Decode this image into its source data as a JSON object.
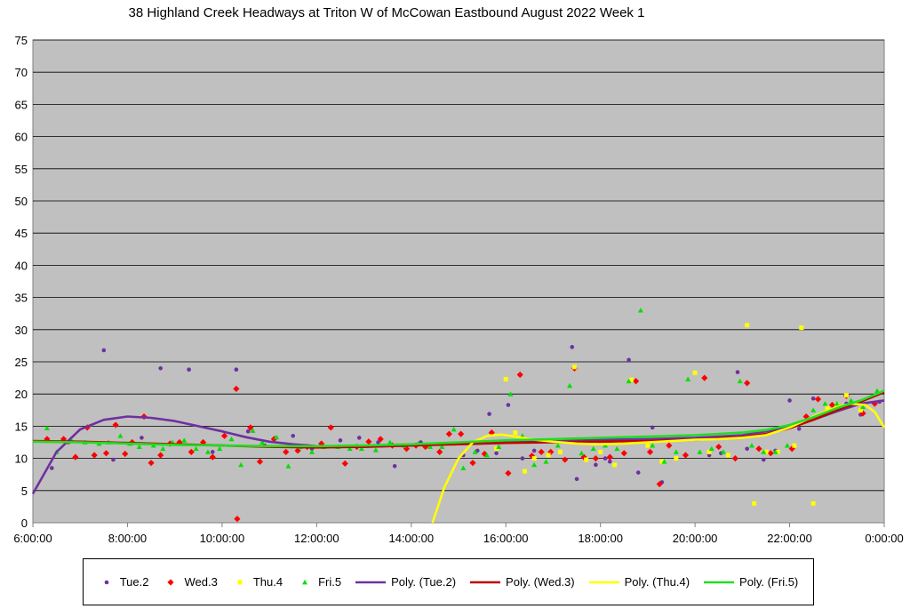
{
  "chart_data": {
    "type": "scatter",
    "title": "38 Highland Creek Headways at Triton W of McCowan Eastbound August 2022  Week 1",
    "xlabel": "",
    "ylabel": "",
    "xlim": [
      6,
      24
    ],
    "ylim": [
      0,
      75
    ],
    "x_ticks": [
      "6:00:00",
      "8:00:00",
      "10:00:00",
      "12:00:00",
      "14:00:00",
      "16:00:00",
      "18:00:00",
      "20:00:00",
      "22:00:00",
      "0:00:00"
    ],
    "y_ticks": [
      0,
      5,
      10,
      15,
      20,
      25,
      30,
      35,
      40,
      45,
      50,
      55,
      60,
      65,
      70,
      75
    ],
    "grid": true,
    "legend_position": "bottom",
    "series": [
      {
        "name": "Tue.2",
        "color": "#7030A0",
        "marker": "circle",
        "x": [
          6.4,
          6.75,
          7.5,
          7.7,
          8.3,
          8.7,
          9.3,
          9.8,
          10.3,
          10.55,
          10.9,
          11.5,
          11.9,
          12.5,
          12.9,
          13.3,
          13.65,
          14.2,
          15.1,
          15.4,
          15.65,
          15.8,
          16.05,
          16.35,
          16.6,
          17.4,
          17.5,
          17.9,
          18.1,
          18.2,
          18.6,
          18.8,
          19.1,
          19.3,
          20.3,
          20.55,
          20.9,
          21.1,
          21.45,
          21.7,
          22.0,
          22.2,
          22.5,
          22.75,
          23.2,
          23.5,
          23.9
        ],
        "y": [
          8.5,
          12.5,
          26.8,
          9.8,
          13.2,
          24.0,
          23.8,
          11.0,
          23.8,
          14.2,
          12.0,
          13.5,
          11.5,
          12.8,
          13.2,
          12.5,
          8.8,
          12.5,
          10.5,
          11.2,
          16.9,
          10.8,
          18.3,
          10.0,
          11.2,
          27.3,
          6.8,
          9.0,
          10.0,
          9.5,
          25.3,
          7.8,
          14.8,
          6.3,
          10.5,
          10.8,
          23.4,
          11.5,
          9.8,
          11.2,
          19.0,
          14.6,
          19.3,
          16.8,
          18.5,
          16.8,
          18.8
        ]
      },
      {
        "name": "Wed.3",
        "color": "#FF0000",
        "marker": "diamond",
        "x": [
          6.3,
          6.65,
          6.9,
          7.15,
          7.3,
          7.55,
          7.75,
          7.95,
          8.1,
          8.35,
          8.5,
          8.7,
          8.9,
          9.1,
          9.35,
          9.6,
          9.8,
          10.05,
          10.3,
          10.32,
          10.6,
          10.8,
          11.1,
          11.35,
          11.6,
          11.8,
          12.1,
          12.3,
          12.6,
          12.85,
          13.1,
          13.35,
          13.6,
          13.9,
          14.1,
          14.3,
          14.6,
          14.8,
          15.05,
          15.3,
          15.55,
          15.7,
          16.05,
          16.3,
          16.55,
          16.75,
          16.95,
          17.25,
          17.45,
          17.65,
          17.9,
          18.2,
          18.5,
          18.75,
          19.05,
          19.25,
          19.45,
          19.8,
          20.2,
          20.5,
          20.85,
          21.1,
          21.35,
          21.6,
          22.05,
          22.35,
          22.6,
          22.9,
          23.2,
          23.55,
          23.8
        ],
        "y": [
          13.0,
          13.0,
          10.2,
          14.8,
          10.5,
          10.8,
          15.2,
          10.7,
          12.5,
          16.5,
          9.3,
          10.5,
          12.3,
          12.5,
          11.0,
          12.5,
          10.2,
          13.5,
          20.8,
          0.6,
          14.8,
          9.5,
          13.0,
          11.0,
          11.2,
          11.8,
          12.3,
          14.8,
          9.2,
          11.8,
          12.6,
          13.0,
          12.0,
          11.5,
          12.0,
          11.8,
          11.0,
          13.8,
          13.8,
          9.3,
          10.7,
          14.0,
          7.7,
          23.0,
          10.4,
          11.0,
          11.0,
          9.8,
          24.0,
          10.2,
          10.0,
          10.2,
          10.8,
          22.0,
          11.0,
          6.0,
          12.0,
          10.5,
          22.5,
          11.8,
          10.0,
          21.7,
          11.5,
          10.8,
          11.5,
          16.5,
          19.2,
          18.3,
          19.7,
          17.0,
          18.5
        ]
      },
      {
        "name": "Thu.4",
        "color": "#FFFF00",
        "marker": "square",
        "x": [
          15.8,
          16.0,
          16.2,
          16.4,
          16.6,
          16.9,
          17.15,
          17.45,
          17.7,
          18.0,
          18.3,
          18.65,
          19.0,
          19.3,
          19.6,
          20.0,
          20.3,
          20.7,
          21.1,
          21.25,
          21.5,
          21.75,
          22.1,
          22.25,
          22.5,
          22.8,
          23.0,
          23.2,
          23.5
        ],
        "y": [
          11.5,
          22.3,
          14.0,
          8.0,
          10.0,
          10.5,
          11.0,
          24.2,
          9.8,
          11.0,
          9.0,
          22.2,
          12.0,
          9.5,
          10.0,
          23.3,
          11.0,
          10.5,
          30.7,
          3.0,
          11.0,
          11.0,
          12.0,
          30.3,
          3.0,
          17.8,
          18.3,
          19.8,
          17.5
        ]
      },
      {
        "name": "Fri.5",
        "color": "#00E000",
        "marker": "triangle",
        "x": [
          6.3,
          6.5,
          6.8,
          7.1,
          7.4,
          7.6,
          7.85,
          8.05,
          8.25,
          8.55,
          8.75,
          8.95,
          9.2,
          9.45,
          9.7,
          9.95,
          10.2,
          10.4,
          10.65,
          10.85,
          11.15,
          11.4,
          11.65,
          11.9,
          12.15,
          12.45,
          12.7,
          12.95,
          13.25,
          13.55,
          13.85,
          14.15,
          14.4,
          14.65,
          14.9,
          15.1,
          15.35,
          15.6,
          15.85,
          16.1,
          16.35,
          16.6,
          16.85,
          17.1,
          17.35,
          17.6,
          17.85,
          18.1,
          18.35,
          18.6,
          18.85,
          19.1,
          19.35,
          19.6,
          19.85,
          20.1,
          20.35,
          20.6,
          20.95,
          21.2,
          21.45,
          21.7,
          21.95,
          22.2,
          22.5,
          22.75,
          23.0,
          23.3,
          23.55,
          23.85
        ],
        "y": [
          14.7,
          11.0,
          13.0,
          12.5,
          12.3,
          12.5,
          13.5,
          12.3,
          11.8,
          12.0,
          11.5,
          12.5,
          12.8,
          11.5,
          11.0,
          11.5,
          13.0,
          9.0,
          14.3,
          12.5,
          13.3,
          8.8,
          11.8,
          11.0,
          11.8,
          11.8,
          11.5,
          11.5,
          11.3,
          12.5,
          12.0,
          12.3,
          11.8,
          11.8,
          14.5,
          8.5,
          11.0,
          10.5,
          11.8,
          20.0,
          13.5,
          9.0,
          9.5,
          12.0,
          21.3,
          10.8,
          11.5,
          12.0,
          11.5,
          22.0,
          33.0,
          12.0,
          9.5,
          11.0,
          22.3,
          11.0,
          11.5,
          11.0,
          22.0,
          12.0,
          11.0,
          11.0,
          12.0,
          15.5,
          17.5,
          18.5,
          18.5,
          19.0,
          18.0,
          20.5
        ]
      }
    ],
    "trendlines": [
      {
        "name": "Poly. (Tue.2)",
        "color": "#7030A0",
        "x": [
          6.0,
          6.5,
          7.0,
          7.5,
          8.0,
          8.5,
          9.0,
          9.5,
          10.0,
          10.5,
          11.0,
          11.5,
          12.0,
          12.5,
          13.0,
          14.0,
          15.0,
          16.0,
          17.0,
          18.0,
          19.0,
          20.0,
          21.0,
          22.0,
          22.5,
          23.0,
          23.5,
          24.0
        ],
        "y": [
          4.5,
          11.0,
          14.5,
          16.0,
          16.5,
          16.3,
          15.8,
          15.0,
          14.2,
          13.3,
          12.6,
          12.2,
          11.9,
          11.8,
          11.8,
          12.0,
          12.3,
          12.6,
          12.8,
          12.9,
          13.0,
          13.2,
          13.6,
          14.8,
          16.0,
          17.3,
          18.5,
          19.0
        ]
      },
      {
        "name": "Poly. (Wed.3)",
        "color": "#C00000",
        "x": [
          6.0,
          7.0,
          8.0,
          9.0,
          10.0,
          11.0,
          12.0,
          13.0,
          14.0,
          15.0,
          16.0,
          17.0,
          18.0,
          19.0,
          20.0,
          21.0,
          21.5,
          22.0,
          22.5,
          23.0,
          23.5,
          24.0
        ],
        "y": [
          12.7,
          12.6,
          12.4,
          12.2,
          12.0,
          11.8,
          11.7,
          11.8,
          12.0,
          12.2,
          12.4,
          12.5,
          12.6,
          12.7,
          12.9,
          13.3,
          13.8,
          14.7,
          16.0,
          17.5,
          18.8,
          20.3
        ]
      },
      {
        "name": "Poly. (Thu.4)",
        "color": "#FFFF00",
        "x": [
          14.45,
          14.7,
          15.0,
          15.3,
          15.6,
          15.9,
          16.2,
          16.5,
          17.0,
          17.5,
          18.0,
          18.5,
          19.0,
          19.5,
          20.0,
          20.5,
          21.0,
          21.5,
          22.0,
          22.5,
          23.0,
          23.3,
          23.6,
          23.8,
          24.0
        ],
        "y": [
          0.0,
          5.5,
          10.0,
          12.5,
          13.5,
          13.7,
          13.4,
          13.0,
          12.6,
          12.3,
          12.2,
          12.3,
          12.5,
          12.7,
          12.9,
          13.0,
          13.2,
          13.6,
          14.8,
          16.5,
          18.0,
          18.5,
          18.3,
          17.2,
          14.8
        ]
      },
      {
        "name": "Poly. (Fri.5)",
        "color": "#22DD22",
        "x": [
          6.0,
          7.0,
          8.0,
          9.0,
          10.0,
          11.0,
          12.0,
          13.0,
          14.0,
          15.0,
          16.0,
          17.0,
          18.0,
          19.0,
          20.0,
          21.0,
          21.5,
          22.0,
          22.5,
          23.0,
          23.5,
          24.0
        ],
        "y": [
          12.6,
          12.5,
          12.3,
          12.1,
          12.0,
          11.9,
          11.9,
          12.0,
          12.2,
          12.5,
          12.8,
          13.0,
          13.2,
          13.4,
          13.6,
          14.0,
          14.4,
          15.2,
          16.4,
          17.8,
          19.0,
          20.5
        ]
      }
    ]
  }
}
